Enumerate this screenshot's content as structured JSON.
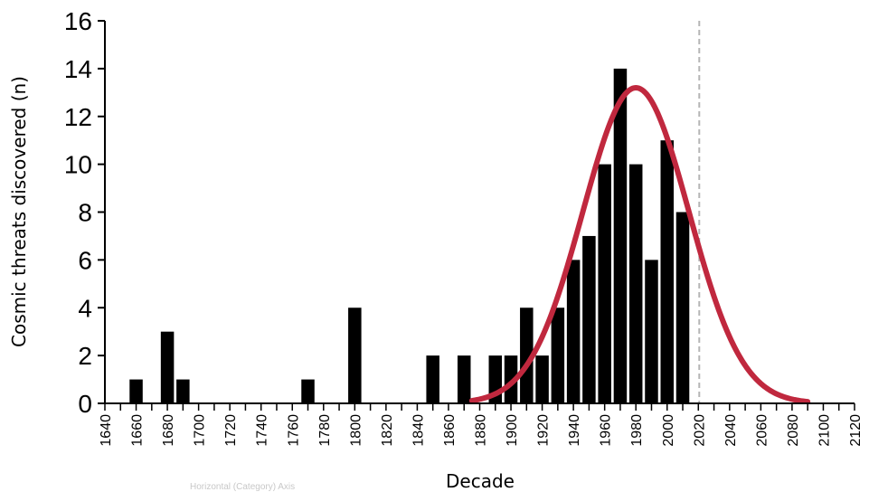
{
  "chart_data": {
    "type": "bar",
    "title": "",
    "xlabel": "Decade",
    "ylabel": "Cosmic threats discovered (n)",
    "tooltip_label": "Horizontal (Category) Axis",
    "ylim": [
      0,
      16
    ],
    "y_ticks": [
      0,
      2,
      4,
      6,
      8,
      10,
      12,
      14,
      16
    ],
    "x_start": 1640,
    "x_end": 2120,
    "bin_width": 10,
    "x_tick_step": 20,
    "x_tick_labels": [
      "1640",
      "1660",
      "1680",
      "1700",
      "1720",
      "1740",
      "1760",
      "1780",
      "1800",
      "1820",
      "1840",
      "1860",
      "1880",
      "1900",
      "1920",
      "1940",
      "1960",
      "1980",
      "2000",
      "2020",
      "2040",
      "2060",
      "2080",
      "2100",
      "2120"
    ],
    "bars": [
      {
        "decade": 1660,
        "value": 1
      },
      {
        "decade": 1680,
        "value": 3
      },
      {
        "decade": 1690,
        "value": 1
      },
      {
        "decade": 1770,
        "value": 1
      },
      {
        "decade": 1800,
        "value": 4
      },
      {
        "decade": 1850,
        "value": 2
      },
      {
        "decade": 1870,
        "value": 2
      },
      {
        "decade": 1890,
        "value": 2
      },
      {
        "decade": 1900,
        "value": 2
      },
      {
        "decade": 1910,
        "value": 4
      },
      {
        "decade": 1920,
        "value": 2
      },
      {
        "decade": 1930,
        "value": 4
      },
      {
        "decade": 1940,
        "value": 6
      },
      {
        "decade": 1950,
        "value": 7
      },
      {
        "decade": 1960,
        "value": 10
      },
      {
        "decade": 1970,
        "value": 14
      },
      {
        "decade": 1980,
        "value": 10
      },
      {
        "decade": 1990,
        "value": 6
      },
      {
        "decade": 2000,
        "value": 11
      },
      {
        "decade": 2010,
        "value": 8
      }
    ],
    "fit_curve": {
      "type": "gaussian",
      "peak": 13.2,
      "mean": 1980,
      "sd": 34,
      "from": 1875,
      "to": 2090,
      "color": "#c0283e"
    },
    "reference_line": {
      "decade": 2020,
      "color": "#b5b5b5",
      "style": "dashed"
    },
    "grid": false,
    "bar_color": "#000000"
  }
}
